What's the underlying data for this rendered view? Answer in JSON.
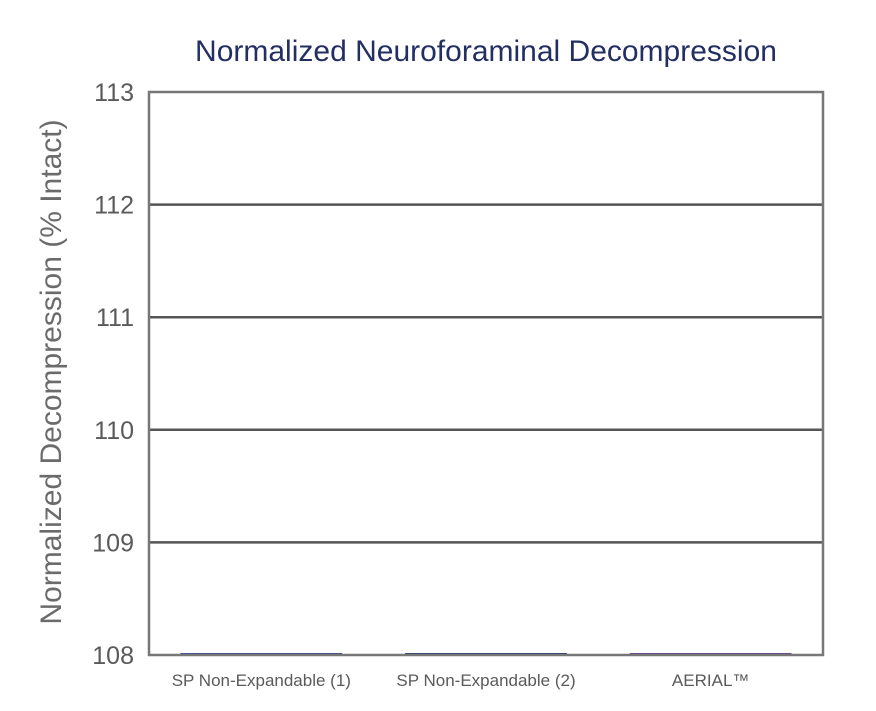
{
  "chart_data": {
    "type": "bar",
    "title": "Normalized Neuroforaminal Decompression",
    "xlabel": "",
    "ylabel": "Normalized Decompression (% Intact)",
    "ylim": [
      108,
      113
    ],
    "yticks": [
      "108",
      "109",
      "110",
      "111",
      "112",
      "113"
    ],
    "categories": [
      "SP Non-Expandable (1)",
      "SP Non-Expandable (2)",
      "AERIAL™"
    ],
    "values": [
      108.01,
      108.01,
      108.01
    ],
    "bar_colors": [
      "#3f4a92",
      "#2b3a6e",
      "#6a3f92"
    ],
    "grid": true,
    "legend": "none",
    "colors": {
      "title": "#232e63",
      "axis_text": "#6b6b6b",
      "tick_text": "#5a5a5a",
      "gridline": "#555555",
      "frame": "#777777"
    }
  }
}
